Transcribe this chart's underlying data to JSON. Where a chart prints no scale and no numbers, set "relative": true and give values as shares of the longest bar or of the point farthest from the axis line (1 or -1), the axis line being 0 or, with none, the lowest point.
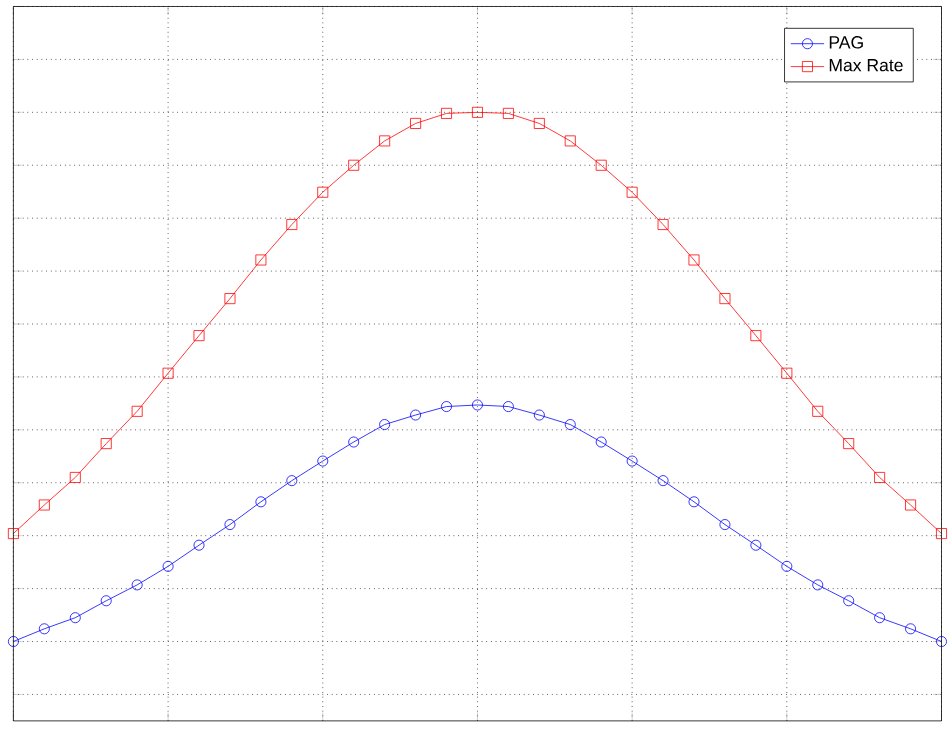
{
  "chart_data": {
    "type": "line",
    "relative": true,
    "grid": true,
    "legend": "top right",
    "line_style": "solid",
    "categories": [
      null,
      null,
      null,
      null,
      null,
      null,
      null,
      null,
      null,
      null,
      null,
      null,
      null,
      null,
      null,
      null,
      null,
      null,
      null,
      null,
      null,
      null,
      null,
      null,
      null,
      null,
      null,
      null,
      null,
      null,
      null
    ],
    "series": [
      {
        "name": "PAG",
        "color": "#0000ff",
        "marker": "circle",
        "values": [
          0,
          0.024,
          0.045,
          0.077,
          0.107,
          0.142,
          0.182,
          0.221,
          0.264,
          0.304,
          0.341,
          0.377,
          0.41,
          0.428,
          0.444,
          0.447,
          0.444,
          0.428,
          0.41,
          0.377,
          0.341,
          0.304,
          0.264,
          0.221,
          0.182,
          0.142,
          0.107,
          0.077,
          0.045,
          0.024,
          0
        ]
      },
      {
        "name": "Max Rate",
        "color": "#ff0000",
        "marker": "square",
        "values": [
          0.204,
          0.258,
          0.31,
          0.374,
          0.435,
          0.507,
          0.578,
          0.648,
          0.721,
          0.788,
          0.849,
          0.9,
          0.946,
          0.979,
          0.998,
          1,
          0.998,
          0.979,
          0.946,
          0.9,
          0.849,
          0.788,
          0.721,
          0.648,
          0.578,
          0.507,
          0.435,
          0.374,
          0.31,
          0.258,
          0.204
        ]
      }
    ]
  }
}
